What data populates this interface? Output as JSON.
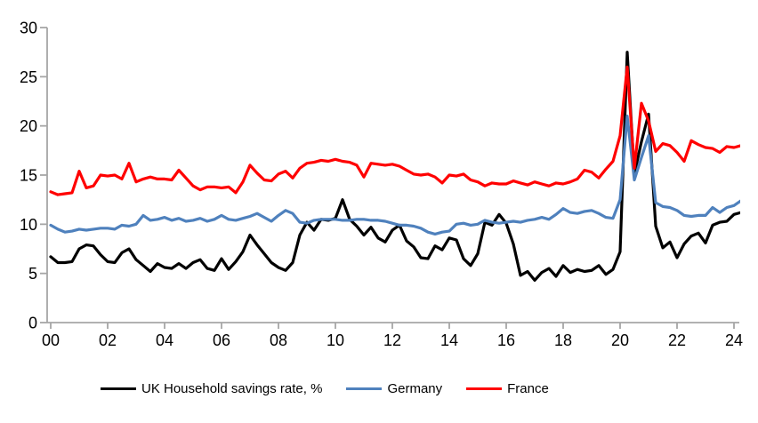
{
  "chart_data": {
    "type": "line",
    "title": "",
    "xlabel": "",
    "ylabel": "",
    "x_frequency": "quarterly",
    "x_start_year": 2000,
    "x_step_years": 0.25,
    "xlim": [
      2000,
      2024.25
    ],
    "ylim": [
      0,
      30
    ],
    "grid": false,
    "legend_position": "bottom",
    "axis_color": "#a6a6a6",
    "x_ticks": [
      {
        "t": 0,
        "label": "00"
      },
      {
        "t": 2,
        "label": "02"
      },
      {
        "t": 4,
        "label": "04"
      },
      {
        "t": 6,
        "label": "06"
      },
      {
        "t": 8,
        "label": "08"
      },
      {
        "t": 10,
        "label": "10"
      },
      {
        "t": 12,
        "label": "12"
      },
      {
        "t": 14,
        "label": "14"
      },
      {
        "t": 16,
        "label": "16"
      },
      {
        "t": 18,
        "label": "18"
      },
      {
        "t": 20,
        "label": "20"
      },
      {
        "t": 22,
        "label": "22"
      },
      {
        "t": 24,
        "label": "24"
      }
    ],
    "y_ticks": [
      {
        "v": 0,
        "label": "0"
      },
      {
        "v": 5,
        "label": "5"
      },
      {
        "v": 10,
        "label": "10"
      },
      {
        "v": 15,
        "label": "15"
      },
      {
        "v": 20,
        "label": "20"
      },
      {
        "v": 25,
        "label": "25"
      },
      {
        "v": 30,
        "label": "30"
      }
    ],
    "series": [
      {
        "name": "UK Household savings rate, %",
        "color": "#000000",
        "values": [
          6.7,
          6.1,
          6.1,
          6.2,
          7.5,
          7.9,
          7.8,
          6.9,
          6.2,
          6.1,
          7.1,
          7.5,
          6.4,
          5.8,
          5.2,
          6.0,
          5.6,
          5.5,
          6.0,
          5.5,
          6.1,
          6.4,
          5.5,
          5.3,
          6.5,
          5.4,
          6.2,
          7.2,
          8.9,
          7.9,
          7.0,
          6.1,
          5.6,
          5.3,
          6.1,
          8.9,
          10.2,
          9.4,
          10.5,
          10.4,
          10.6,
          12.5,
          10.5,
          9.8,
          8.9,
          9.7,
          8.6,
          8.2,
          9.4,
          9.9,
          8.3,
          7.7,
          6.6,
          6.5,
          7.8,
          7.4,
          8.6,
          8.4,
          6.5,
          5.8,
          7.0,
          10.2,
          9.9,
          11.0,
          10.1,
          8.0,
          4.8,
          5.2,
          4.3,
          5.1,
          5.5,
          4.7,
          5.8,
          5.1,
          5.4,
          5.2,
          5.3,
          5.8,
          4.9,
          5.4,
          7.2,
          27.5,
          15.1,
          18.4,
          21.2,
          9.8,
          7.6,
          8.2,
          6.6,
          8.0,
          8.8,
          9.1,
          8.1,
          9.9,
          10.2,
          10.3,
          11.0,
          11.2
        ]
      },
      {
        "name": "Germany",
        "color": "#4f81bd",
        "values": [
          9.9,
          9.5,
          9.2,
          9.3,
          9.5,
          9.4,
          9.5,
          9.6,
          9.6,
          9.5,
          9.9,
          9.8,
          10.0,
          10.9,
          10.4,
          10.5,
          10.7,
          10.4,
          10.6,
          10.3,
          10.4,
          10.6,
          10.3,
          10.5,
          10.9,
          10.5,
          10.4,
          10.6,
          10.8,
          11.1,
          10.7,
          10.3,
          10.9,
          11.4,
          11.1,
          10.2,
          10.1,
          10.4,
          10.5,
          10.5,
          10.5,
          10.4,
          10.4,
          10.5,
          10.5,
          10.4,
          10.4,
          10.3,
          10.1,
          9.9,
          9.9,
          9.8,
          9.6,
          9.2,
          9.0,
          9.2,
          9.3,
          10.0,
          10.1,
          9.9,
          10.0,
          10.4,
          10.2,
          10.1,
          10.2,
          10.3,
          10.2,
          10.4,
          10.5,
          10.7,
          10.5,
          11.0,
          11.6,
          11.2,
          11.1,
          11.3,
          11.4,
          11.1,
          10.7,
          10.6,
          12.5,
          21.0,
          14.5,
          16.8,
          19.0,
          12.2,
          11.8,
          11.7,
          11.4,
          10.9,
          10.8,
          10.9,
          10.9,
          11.7,
          11.2,
          11.7,
          11.9,
          12.4
        ]
      },
      {
        "name": "France",
        "color": "#ff0000",
        "values": [
          13.3,
          13.0,
          13.1,
          13.2,
          15.4,
          13.7,
          13.9,
          15.0,
          14.9,
          15.0,
          14.6,
          16.2,
          14.3,
          14.6,
          14.8,
          14.6,
          14.6,
          14.5,
          15.5,
          14.7,
          13.9,
          13.5,
          13.8,
          13.8,
          13.7,
          13.8,
          13.2,
          14.3,
          16.0,
          15.2,
          14.5,
          14.4,
          15.1,
          15.4,
          14.7,
          15.7,
          16.2,
          16.3,
          16.5,
          16.4,
          16.6,
          16.4,
          16.3,
          16.0,
          14.8,
          16.2,
          16.1,
          16.0,
          16.1,
          15.9,
          15.5,
          15.1,
          15.0,
          15.1,
          14.8,
          14.2,
          15.0,
          14.9,
          15.1,
          14.5,
          14.3,
          13.9,
          14.2,
          14.1,
          14.1,
          14.4,
          14.2,
          14.0,
          14.3,
          14.1,
          13.9,
          14.2,
          14.1,
          14.3,
          14.6,
          15.5,
          15.3,
          14.7,
          15.6,
          16.4,
          19.0,
          26.0,
          15.7,
          22.3,
          20.5,
          17.4,
          18.2,
          18.0,
          17.3,
          16.4,
          18.5,
          18.1,
          17.8,
          17.7,
          17.3,
          17.9,
          17.8,
          18.0
        ]
      }
    ]
  }
}
